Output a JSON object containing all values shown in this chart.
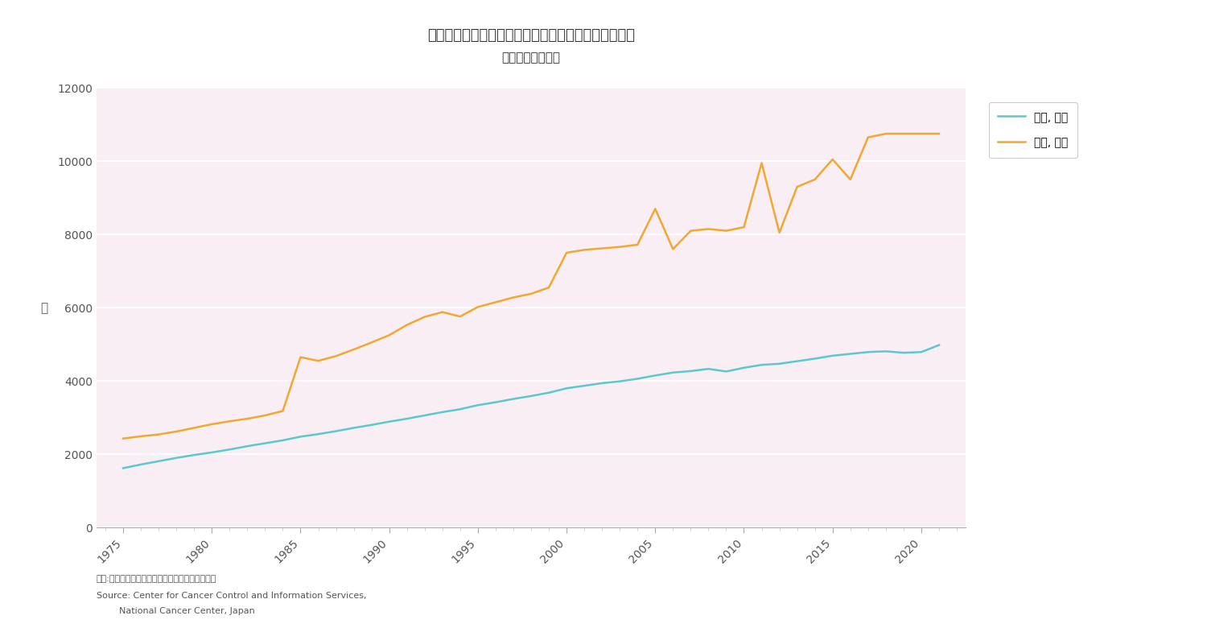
{
  "title_line1": "卵巣がんの罹患数（全国）と死亡数（全国）年次推移",
  "title_line2": "［女性，全年齢］",
  "ylabel": "例",
  "xlabel_ticks": [
    1975,
    1980,
    1985,
    1990,
    1995,
    2000,
    2005,
    2010,
    2015,
    2020
  ],
  "ylim": [
    0,
    12000
  ],
  "yticks": [
    0,
    2000,
    4000,
    6000,
    8000,
    10000,
    12000
  ],
  "background_color": "#f9eef4",
  "outer_background": "#ffffff",
  "death_color": "#5bc8d0",
  "incidence_color": "#f0a830",
  "legend_death": "死亡, 卵巣",
  "legend_incidence": "罹患, 卵巣",
  "source_line1": "資料:国立がん研究センターがん対策情報センター",
  "source_line2": "Source: Center for Cancer Control and Information Services,",
  "source_line3": "        National Cancer Center, Japan",
  "years": [
    1975,
    1976,
    1977,
    1978,
    1979,
    1980,
    1981,
    1982,
    1983,
    1984,
    1985,
    1986,
    1987,
    1988,
    1989,
    1990,
    1991,
    1992,
    1993,
    1994,
    1995,
    1996,
    1997,
    1998,
    1999,
    2000,
    2001,
    2002,
    2003,
    2004,
    2005,
    2006,
    2007,
    2008,
    2009,
    2010,
    2011,
    2012,
    2013,
    2014,
    2015,
    2016,
    2017,
    2018,
    2019,
    2020,
    2021
  ],
  "death_values": [
    1620,
    1720,
    1810,
    1900,
    1980,
    2050,
    2130,
    2220,
    2300,
    2380,
    2480,
    2550,
    2630,
    2720,
    2800,
    2890,
    2970,
    3060,
    3150,
    3230,
    3340,
    3420,
    3510,
    3590,
    3680,
    3800,
    3870,
    3940,
    3990,
    4060,
    4150,
    4230,
    4270,
    4330,
    4260,
    4360,
    4440,
    4470,
    4540,
    4610,
    4690,
    4740,
    4790,
    4810,
    4770,
    4790,
    4980
  ],
  "incidence_values": [
    2430,
    2490,
    2540,
    2620,
    2720,
    2820,
    2900,
    2970,
    3060,
    3180,
    4650,
    4550,
    4680,
    4860,
    5050,
    5250,
    5530,
    5750,
    5880,
    5760,
    6020,
    6150,
    6280,
    6380,
    6550,
    7500,
    7580,
    7620,
    7660,
    7720,
    8700,
    7600,
    8100,
    8150,
    8100,
    8200,
    9950,
    8050,
    9300,
    9500,
    10050,
    9500,
    10650,
    10750,
    10750,
    10750,
    10750
  ]
}
